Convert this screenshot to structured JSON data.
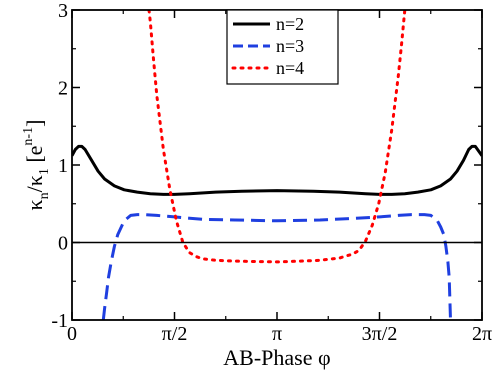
{
  "chart_data": {
    "type": "line",
    "title": "",
    "xlabel": "AB-Phase φ",
    "ylabel": {
      "base": "κ",
      "num_sub": "n",
      "sep": "/κ",
      "den_sub": "1",
      "unit_open": "  [e",
      "unit_sup": "n-1",
      "unit_close": "]"
    },
    "xlim": [
      0,
      6.2832
    ],
    "ylim": [
      -1,
      3
    ],
    "grid": false,
    "zero_line": true,
    "legend_position": "top-center",
    "x_ticks": [
      {
        "value": 0,
        "label": "0"
      },
      {
        "value": 1.5708,
        "label": "π/2"
      },
      {
        "value": 3.1416,
        "label": "π"
      },
      {
        "value": 4.7124,
        "label": "3π/2"
      },
      {
        "value": 6.2832,
        "label": "2π"
      }
    ],
    "y_ticks": [
      {
        "value": -1,
        "label": "-1"
      },
      {
        "value": 0,
        "label": "0"
      },
      {
        "value": 1,
        "label": "1"
      },
      {
        "value": 2,
        "label": "2"
      },
      {
        "value": 3,
        "label": "3"
      }
    ],
    "series": [
      {
        "name": "n=2",
        "color": "#000000",
        "style": "solid",
        "x": [
          0,
          0.05,
          0.1,
          0.15,
          0.2,
          0.3,
          0.4,
          0.5,
          0.65,
          0.8,
          1.0,
          1.2,
          1.4,
          1.57,
          1.8,
          2.2,
          2.6,
          3.1416,
          3.7,
          4.1,
          4.5,
          4.7124,
          4.9,
          5.1,
          5.3,
          5.5,
          5.65,
          5.8,
          5.9,
          6.0,
          6.08,
          6.13,
          6.18,
          6.2832
        ],
        "y": [
          1.12,
          1.2,
          1.24,
          1.24,
          1.2,
          1.06,
          0.92,
          0.82,
          0.73,
          0.68,
          0.65,
          0.63,
          0.62,
          0.62,
          0.63,
          0.65,
          0.66,
          0.67,
          0.66,
          0.65,
          0.63,
          0.62,
          0.62,
          0.63,
          0.65,
          0.68,
          0.73,
          0.82,
          0.92,
          1.06,
          1.2,
          1.24,
          1.24,
          1.12
        ]
      },
      {
        "name": "n=3",
        "color": "#1f3fe0",
        "style": "dashed",
        "x": [
          0.48,
          0.5,
          0.53,
          0.56,
          0.6,
          0.65,
          0.7,
          0.8,
          0.9,
          1.0,
          1.1,
          1.3,
          1.57,
          2.0,
          2.5,
          3.1416,
          3.8,
          4.3,
          4.7124,
          5.0,
          5.2,
          5.3,
          5.4,
          5.5,
          5.6,
          5.65,
          5.7,
          5.73,
          5.76,
          5.78,
          5.8
        ],
        "y": [
          -1.0,
          -0.85,
          -0.65,
          -0.45,
          -0.25,
          -0.05,
          0.1,
          0.28,
          0.35,
          0.36,
          0.36,
          0.35,
          0.33,
          0.3,
          0.29,
          0.28,
          0.29,
          0.31,
          0.33,
          0.35,
          0.36,
          0.36,
          0.36,
          0.35,
          0.28,
          0.2,
          0.1,
          -0.05,
          -0.25,
          -0.45,
          -1.0
        ]
      },
      {
        "name": "n=4",
        "color": "#ff0000",
        "style": "dotted",
        "x": [
          1.18,
          1.2,
          1.25,
          1.3,
          1.4,
          1.5,
          1.6,
          1.7,
          1.8,
          1.9,
          2.0,
          2.2,
          2.5,
          2.8,
          3.1416,
          3.5,
          3.8,
          4.1,
          4.3,
          4.4,
          4.5,
          4.6,
          4.7,
          4.8,
          4.9,
          5.0,
          5.05,
          5.1
        ],
        "y": [
          3.0,
          2.85,
          2.35,
          1.9,
          1.2,
          0.68,
          0.28,
          0.0,
          -0.13,
          -0.18,
          -0.21,
          -0.23,
          -0.24,
          -0.245,
          -0.25,
          -0.24,
          -0.23,
          -0.2,
          -0.15,
          -0.1,
          0.02,
          0.22,
          0.5,
          0.9,
          1.45,
          2.15,
          2.55,
          3.0
        ]
      }
    ]
  }
}
